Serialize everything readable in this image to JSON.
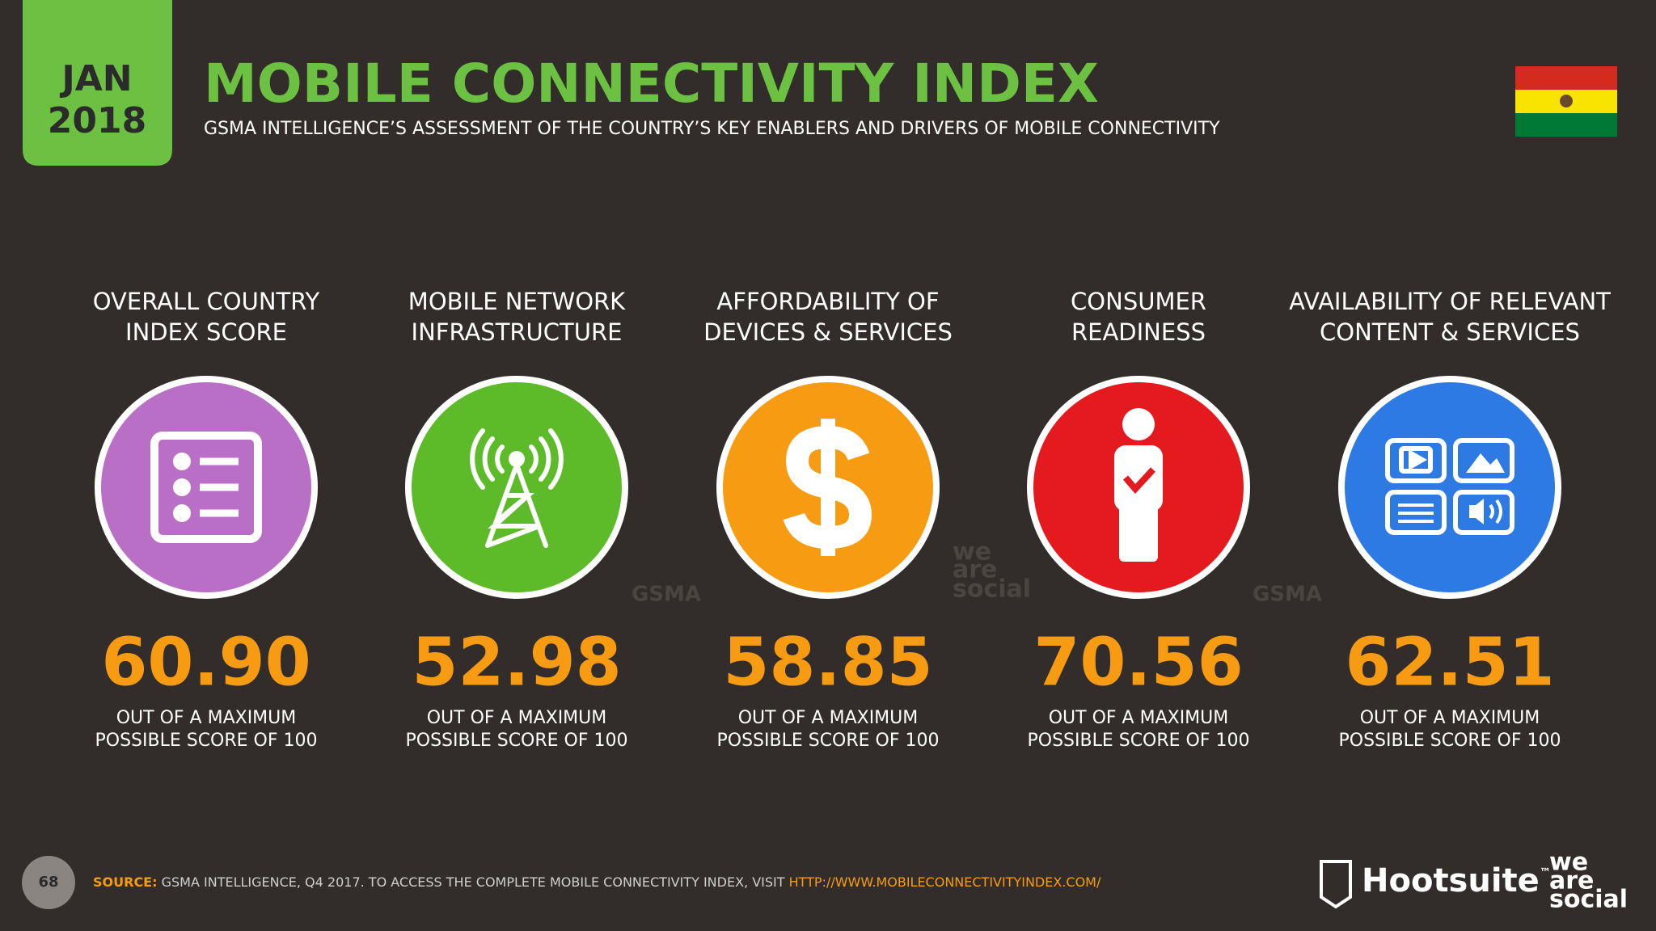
{
  "header": {
    "month": "JAN",
    "year": "2018",
    "title": "MOBILE CONNECTIVITY INDEX",
    "subtitle": "GSMA INTELLIGENCE’S ASSESSMENT OF THE COUNTRY’S KEY ENABLERS AND DRIVERS OF MOBILE CONNECTIVITY"
  },
  "items": [
    {
      "label": [
        "OVERALL COUNTRY",
        "INDEX SCORE"
      ],
      "score": "60.90",
      "caption": [
        "OUT OF A MAXIMUM",
        "POSSIBLE SCORE OF 100"
      ],
      "color": "#b96fc5"
    },
    {
      "label": [
        "MOBILE NETWORK",
        "INFRASTRUCTURE"
      ],
      "score": "52.98",
      "caption": [
        "OUT OF A MAXIMUM",
        "POSSIBLE SCORE OF 100"
      ],
      "color": "#5dbb29"
    },
    {
      "label": [
        "AFFORDABILITY OF",
        "DEVICES & SERVICES"
      ],
      "score": "58.85",
      "caption": [
        "OUT OF A MAXIMUM",
        "POSSIBLE SCORE OF 100"
      ],
      "color": "#f79c12"
    },
    {
      "label": [
        "CONSUMER",
        "READINESS"
      ],
      "score": "70.56",
      "caption": [
        "OUT OF A MAXIMUM",
        "POSSIBLE SCORE OF 100"
      ],
      "color": "#e41a1f"
    },
    {
      "label": [
        "AVAILABILITY OF RELEVANT",
        "CONTENT & SERVICES"
      ],
      "score": "62.51",
      "caption": [
        "OUT OF A MAXIMUM",
        "POSSIBLE SCORE OF 100"
      ],
      "color": "#2d7ae5"
    }
  ],
  "watermarks": [
    "GSMA",
    "we",
    "are",
    "social",
    "GSMA"
  ],
  "footer": {
    "page": "68",
    "source_label": "SOURCE:",
    "source": "GSMA INTELLIGENCE, Q4 2017. TO ACCESS THE COMPLETE MOBILE CONNECTIVITY INDEX, VISIT",
    "url": "HTTP://WWW.MOBILECONNECTIVITYINDEX.COM/",
    "brand": "Hootsuite",
    "brand_tm": "™",
    "partner": [
      "we",
      "are",
      "social"
    ]
  }
}
